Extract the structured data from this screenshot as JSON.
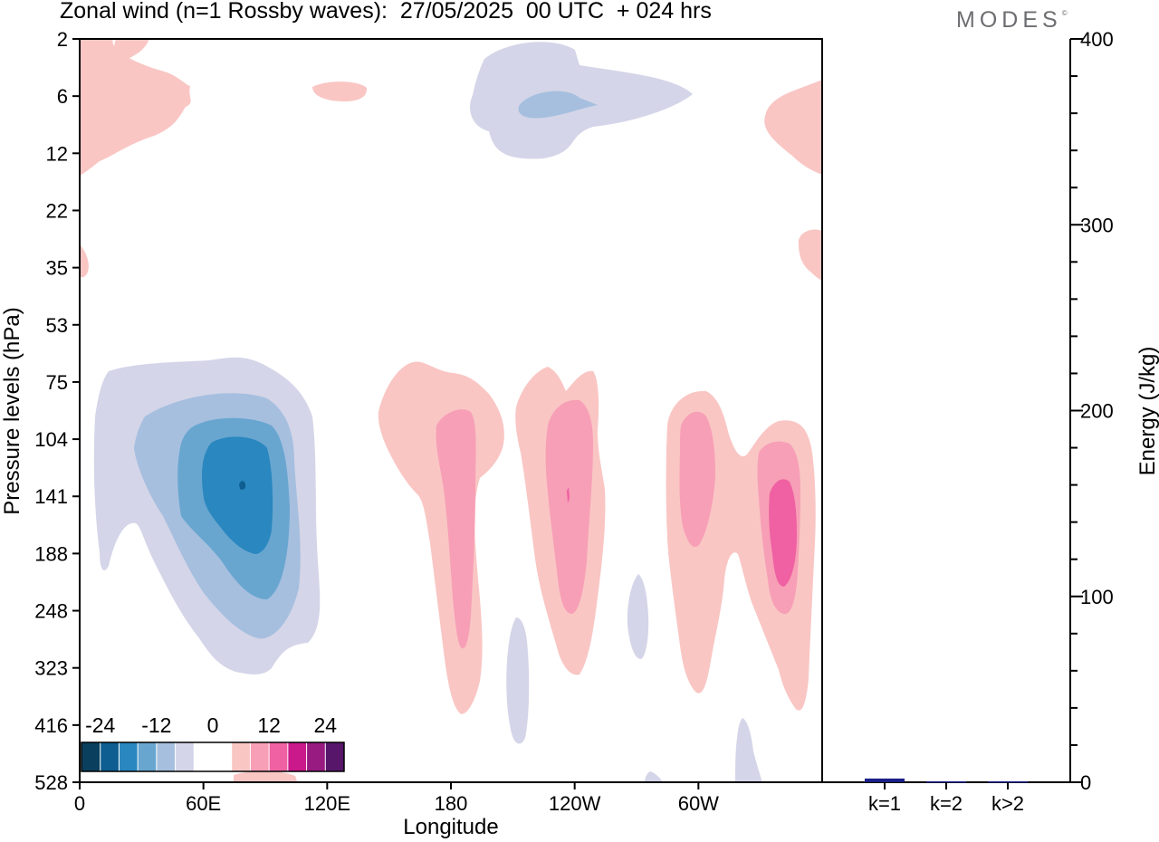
{
  "title": "Zonal wind (n=1 Rossby waves):  27/05/2025  00 UTC  + 024 hrs",
  "brand": "MODES",
  "brand_mark": "©",
  "chart_data": [
    {
      "type": "heatmap",
      "xlabel": "Longitude",
      "ylabel": "Pressure levels (hPa)",
      "x_ticks": [
        "0",
        "60E",
        "120E",
        "180",
        "120W",
        "60W"
      ],
      "y_ticks": [
        "2",
        "6",
        "12",
        "22",
        "35",
        "53",
        "75",
        "104",
        "141",
        "188",
        "248",
        "323",
        "416",
        "528"
      ],
      "colorbar": {
        "labels": [
          "-24",
          "-12",
          "0",
          "12",
          "24"
        ],
        "colors": [
          "#0b3f5e",
          "#0e5e91",
          "#2a87bf",
          "#68a6d0",
          "#a6bfdf",
          "#d4d5e8",
          "#ffffff",
          "#ffffff",
          "#f9c6c4",
          "#f79fb6",
          "#ef61a2",
          "#c9198b",
          "#971b81",
          "#58166b"
        ]
      },
      "regions": [
        {
          "sign": "negative",
          "level": 1,
          "shape": "blob-upper-tropics-180"
        },
        {
          "sign": "negative",
          "level": 2,
          "shape": "core-upper-tropics-180"
        },
        {
          "sign": "positive",
          "level": 1,
          "shape": "upper-left-edge"
        },
        {
          "sign": "positive",
          "level": 1,
          "shape": "upper-small-60E"
        },
        {
          "sign": "positive",
          "level": 1,
          "shape": "upper-right-edge"
        },
        {
          "sign": "positive",
          "level": 1,
          "shape": "right-edge-35hPa"
        },
        {
          "sign": "positive",
          "level": 1,
          "shape": "left-edge-35hPa"
        },
        {
          "sign": "negative",
          "level": 1,
          "shape": "dipole-60E-outer"
        },
        {
          "sign": "negative",
          "level": 2,
          "shape": "dipole-60E-l2"
        },
        {
          "sign": "negative",
          "level": 3,
          "shape": "dipole-60E-l3"
        },
        {
          "sign": "negative",
          "level": 4,
          "shape": "dipole-60E-l4"
        },
        {
          "sign": "negative",
          "level": 5,
          "shape": "dipole-60E-core"
        },
        {
          "sign": "positive",
          "level": 1,
          "shape": "lobe-180-outer"
        },
        {
          "sign": "positive",
          "level": 2,
          "shape": "lobe-180-inner"
        },
        {
          "sign": "positive",
          "level": 1,
          "shape": "lobe-120W-outer"
        },
        {
          "sign": "positive",
          "level": 2,
          "shape": "lobe-120W-inner"
        },
        {
          "sign": "positive",
          "level": 3,
          "shape": "lobe-120W-core"
        },
        {
          "sign": "positive",
          "level": 1,
          "shape": "lobe-40W-outer"
        },
        {
          "sign": "positive",
          "level": 2,
          "shape": "lobe-55W-inner"
        },
        {
          "sign": "positive",
          "level": 2,
          "shape": "lobe-30W-inner"
        },
        {
          "sign": "positive",
          "level": 3,
          "shape": "lobe-30W-core"
        },
        {
          "sign": "negative",
          "level": 1,
          "shape": "sliver-150W"
        },
        {
          "sign": "negative",
          "level": 1,
          "shape": "sliver-100W"
        },
        {
          "sign": "negative",
          "level": 1,
          "shape": "sliver-40W-bottom"
        },
        {
          "sign": "negative",
          "level": 1,
          "shape": "sliver-85W-bottom"
        },
        {
          "sign": "positive",
          "level": 1,
          "shape": "bottom-strip-60E"
        }
      ]
    },
    {
      "type": "bar",
      "categories": [
        "k=1",
        "k=2",
        "k>2"
      ],
      "values": [
        2,
        0.5,
        0.5
      ],
      "ylabel": "Energy (J/kg)",
      "ylim": [
        0,
        400
      ],
      "y_ticks": [
        "0",
        "100",
        "200",
        "300",
        "400"
      ],
      "bar_color": "#1a1f87"
    }
  ]
}
